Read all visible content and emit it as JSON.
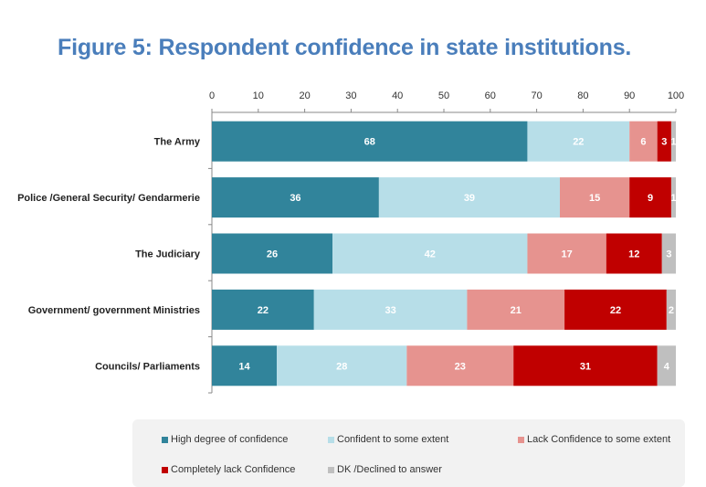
{
  "title": "Figure 5: Respondent confidence in state institutions.",
  "chart_data": {
    "type": "bar",
    "orientation": "horizontal",
    "stacked": true,
    "title": "Figure 5: Respondent confidence in state institutions.",
    "categories": [
      "The Army",
      "Police /General Security/ Gendarmerie",
      "The Judiciary",
      "Government/ government Ministries",
      "Councils/ Parliaments"
    ],
    "series": [
      {
        "name": "High degree of confidence",
        "color": "#31849B",
        "values": [
          68,
          36,
          26,
          22,
          14
        ]
      },
      {
        "name": "Confident to some extent",
        "color": "#B7DEE8",
        "values": [
          22,
          39,
          42,
          33,
          28
        ]
      },
      {
        "name": "Lack Confidence to some extent",
        "color": "#E6938F",
        "values": [
          6,
          15,
          17,
          21,
          23
        ]
      },
      {
        "name": "Completely lack Confidence",
        "color": "#C00000",
        "values": [
          3,
          9,
          12,
          22,
          31
        ]
      },
      {
        "name": "DK /Declined to answer",
        "color": "#BFBFBF",
        "values": [
          1,
          1,
          3,
          2,
          4
        ]
      }
    ],
    "xlim": [
      0,
      100
    ],
    "xticks": [
      "0",
      "10",
      "20",
      "30",
      "40",
      "50",
      "60",
      "70",
      "80",
      "90",
      "100"
    ],
    "xaxis_position": "top",
    "grid": false,
    "legend_position": "bottom",
    "data_labels": true
  }
}
